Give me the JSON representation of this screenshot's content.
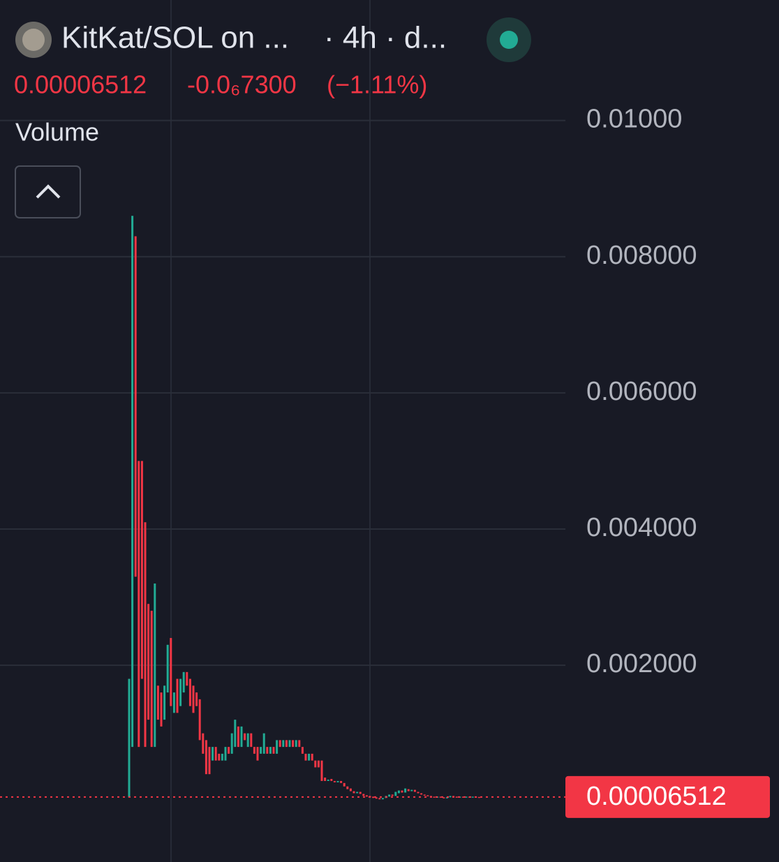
{
  "chart_data": {
    "type": "candlestick",
    "title": "KitKat/SOL on ...",
    "subtitle": "· 4h · d...",
    "price_label": "0.00006512",
    "change_label": "-0.0₆7300",
    "change_pct_label": "(−1.11%)",
    "indicator_label": "Volume",
    "up_color": "#22ab94",
    "down_color": "#f23645",
    "grid": true,
    "ylim": [
      -0.00089,
      0.01177
    ],
    "yticks": [
      {
        "value": 0.002,
        "label": "0.002000"
      },
      {
        "value": 0.004,
        "label": "0.004000"
      },
      {
        "value": 0.006,
        "label": "0.006000"
      },
      {
        "value": 0.008,
        "label": "0.008000"
      },
      {
        "value": 0.01,
        "label": "0.01000"
      }
    ],
    "open": [
      6e-05,
      0.0008,
      0.0083,
      0.005,
      0.005,
      0.0041,
      0.0029,
      0.0028,
      0.0008,
      0.0017,
      0.0016,
      0.0012,
      0.0016,
      0.0024,
      0.0013,
      0.0018,
      0.0014,
      0.0016,
      0.0019,
      0.0018,
      0.0017,
      0.0016,
      0.0015,
      0.001,
      0.0009,
      0.0008,
      0.0006,
      0.0008,
      0.0007,
      0.0006,
      0.0006,
      0.0008,
      0.0007,
      0.0008,
      0.0011,
      0.0008,
      0.001,
      0.0008,
      0.001,
      0.0008,
      0.0008,
      0.0007,
      0.0007,
      0.0008,
      0.0007,
      0.0008,
      0.0007,
      0.0009,
      0.0008,
      0.0009,
      0.0008,
      0.0009,
      0.0008,
      0.0009,
      0.0008,
      0.0007,
      0.0006,
      0.0007,
      0.0006,
      0.0006,
      0.0006,
      0.00035,
      0.0003,
      0.00033,
      0.0003,
      0.00028,
      0.0003,
      0.00027,
      0.00022,
      0.00019,
      0.00015,
      0.00012,
      0.00014,
      0.00011,
      9e-05,
      8e-05,
      7e-05,
      6e-05,
      5e-05,
      3e-05,
      5e-05,
      7e-05,
      0.0001,
      8e-05,
      0.00012,
      0.00016,
      0.00013,
      0.00018,
      0.00015,
      0.00017,
      0.00014,
      0.00012,
      0.0001,
      9e-05,
      8e-05,
      7e-05,
      6e-05,
      7e-05,
      6e-05,
      5e-05,
      6e-05,
      8e-05,
      7e-05,
      6e-05,
      7e-05,
      6e-05,
      7e-05,
      6e-05,
      7e-05,
      6.585e-05
    ],
    "close": [
      0.0018,
      0.0086,
      0.0033,
      0.0008,
      0.0018,
      0.0008,
      0.0012,
      0.0008,
      0.0032,
      0.0012,
      0.0011,
      0.0017,
      0.0023,
      0.0014,
      0.0016,
      0.0013,
      0.0018,
      0.0019,
      0.0017,
      0.0014,
      0.0013,
      0.0014,
      0.0009,
      0.0007,
      0.0004,
      0.0004,
      0.0008,
      0.0006,
      0.0006,
      0.0007,
      0.0008,
      0.0007,
      0.001,
      0.0012,
      0.0008,
      0.0011,
      0.0009,
      0.001,
      0.0008,
      0.0007,
      0.0006,
      0.0008,
      0.001,
      0.0007,
      0.0008,
      0.0007,
      0.0009,
      0.0008,
      0.0009,
      0.0008,
      0.0009,
      0.0008,
      0.0009,
      0.0008,
      0.0007,
      0.0006,
      0.0007,
      0.0006,
      0.0005,
      0.0005,
      0.0003,
      0.0003,
      0.00032,
      0.0003,
      0.00028,
      0.0003,
      0.00027,
      0.00022,
      0.00018,
      0.00015,
      0.00012,
      0.00014,
      0.00011,
      8e-05,
      7e-05,
      6e-05,
      5e-05,
      4e-05,
      3e-05,
      5e-05,
      8e-05,
      0.0001,
      8e-05,
      0.00014,
      0.00016,
      0.00013,
      0.00019,
      0.00015,
      0.00017,
      0.00014,
      0.00012,
      0.0001,
      9e-05,
      8e-05,
      7e-05,
      6e-05,
      7e-05,
      6e-05,
      5e-05,
      6e-05,
      8e-05,
      7e-05,
      6e-05,
      7e-05,
      6e-05,
      7e-05,
      6e-05,
      7e-05,
      6.585e-05,
      6.512e-05
    ]
  }
}
